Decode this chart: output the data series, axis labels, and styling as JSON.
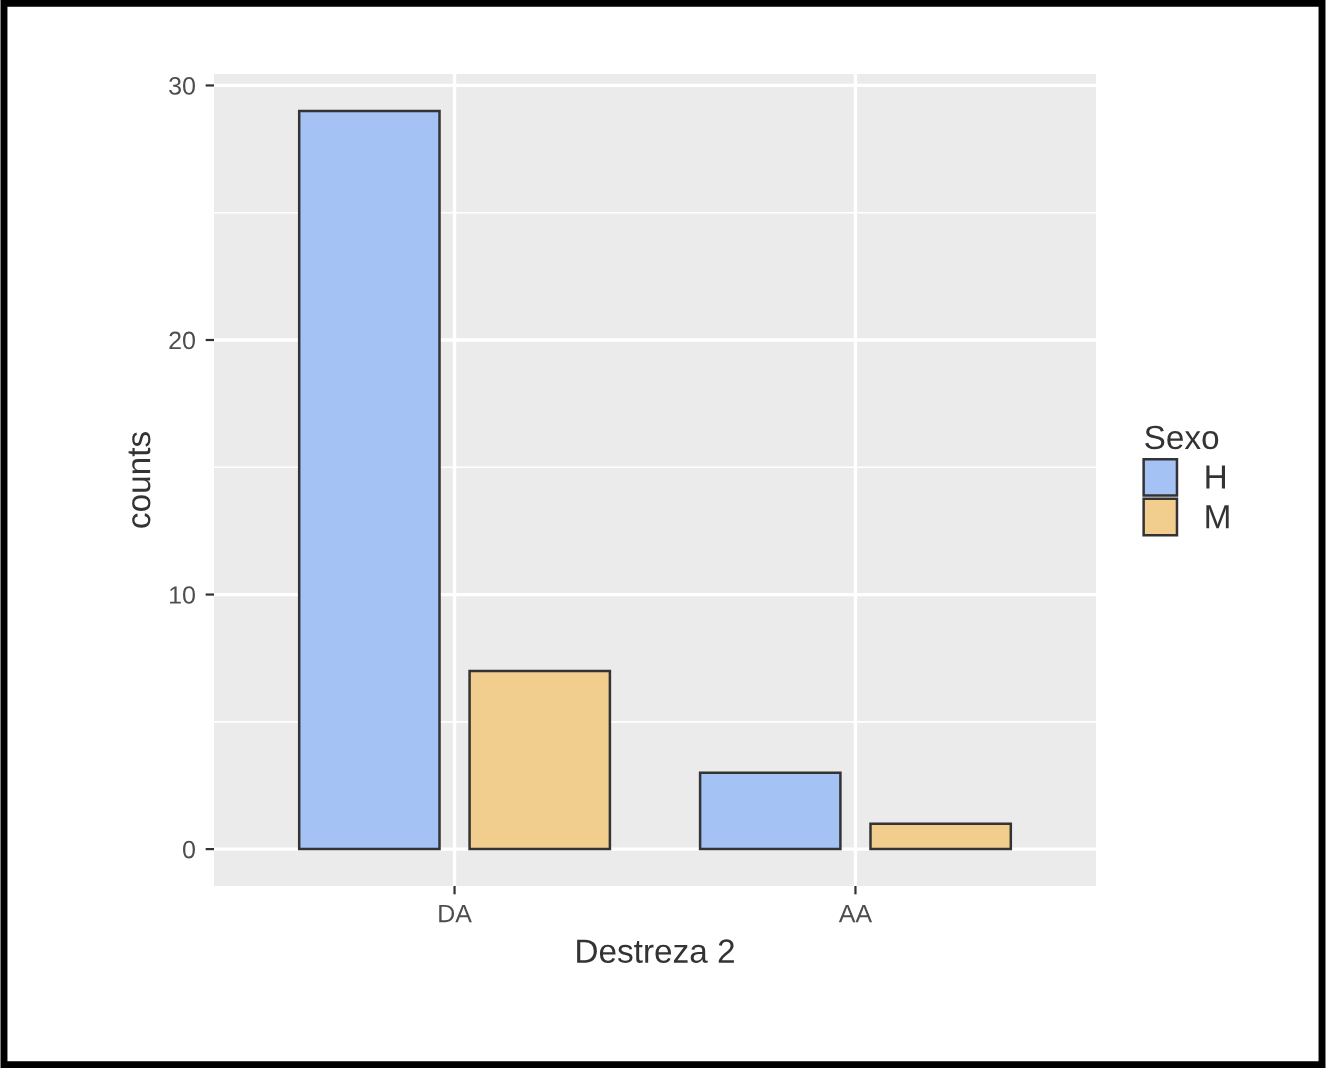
{
  "chart_data": {
    "type": "bar",
    "xlabel": "Destreza 2",
    "ylabel": "counts",
    "legend_title": "Sexo",
    "categories": [
      "DA",
      "AA"
    ],
    "series": [
      {
        "name": "H",
        "color": "#a4c2f4",
        "values": [
          29,
          3
        ]
      },
      {
        "name": "M",
        "color": "#f1cd8e",
        "values": [
          7,
          1
        ]
      }
    ],
    "ylim": [
      -1.45,
      30.45
    ],
    "yticks": [
      0,
      10,
      20,
      30
    ],
    "grid": true,
    "legend": "right"
  }
}
